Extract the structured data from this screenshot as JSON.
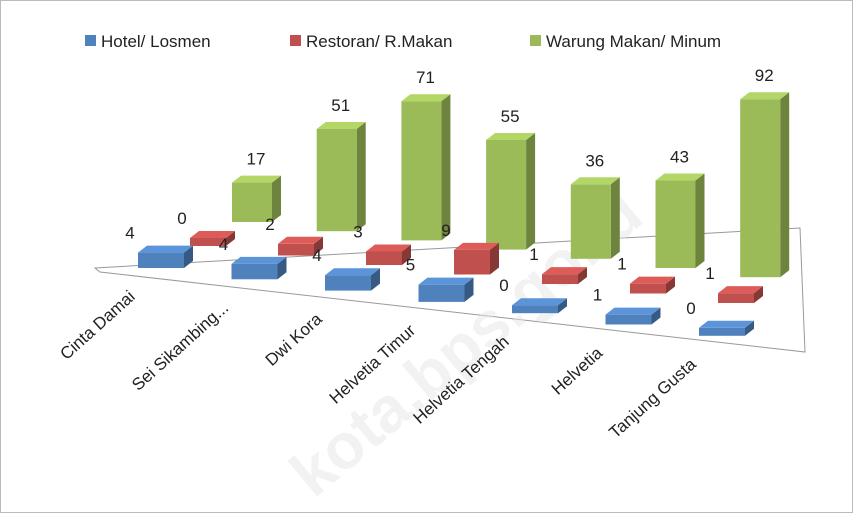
{
  "chart_data": {
    "type": "bar3d",
    "categories": [
      "Cinta Damai",
      "Sei Sikambing...",
      "Dwi Kora",
      "Helvetia Timur",
      "Helvetia Tengah",
      "Helvetia",
      "Tanjung Gusta"
    ],
    "series": [
      {
        "name": "Hotel/ Losmen",
        "color": "#4f81bd",
        "values": [
          4,
          4,
          4,
          5,
          0,
          1,
          0
        ]
      },
      {
        "name": "Restoran/ R.Makan",
        "color": "#c0504d",
        "values": [
          0,
          2,
          3,
          9,
          1,
          1,
          1
        ]
      },
      {
        "name": "Warung Makan/ Minum",
        "color": "#9bbb59",
        "values": [
          17,
          51,
          71,
          55,
          36,
          43,
          92
        ]
      }
    ],
    "legend": "top",
    "watermark": "kota.bps.go.id"
  }
}
